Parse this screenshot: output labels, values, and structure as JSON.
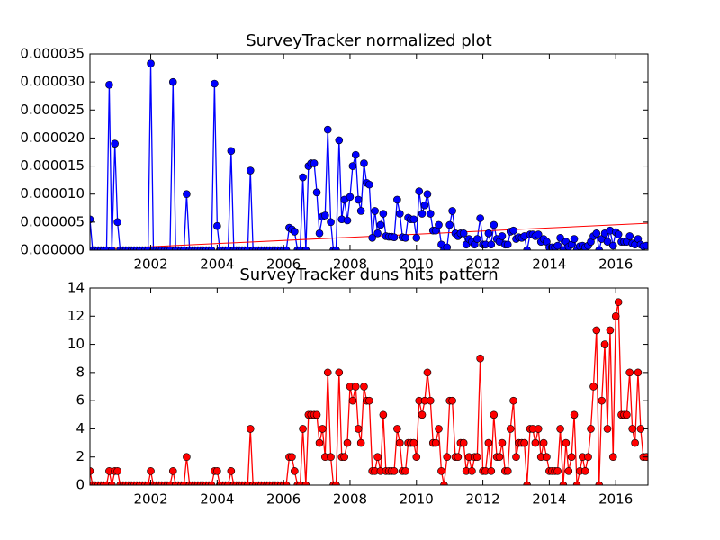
{
  "chart_data": [
    {
      "type": "line",
      "title": "SurveyTracker normalized plot",
      "color": "#0000ff",
      "x": [
        2000.17,
        2000.25,
        2000.33,
        2000.42,
        2000.5,
        2000.58,
        2000.67,
        2000.75,
        2000.83,
        2000.92,
        2001,
        2001.08,
        2001.17,
        2001.25,
        2001.33,
        2001.42,
        2001.5,
        2001.58,
        2001.67,
        2001.75,
        2001.83,
        2001.92,
        2002,
        2002.08,
        2002.17,
        2002.25,
        2002.33,
        2002.42,
        2002.5,
        2002.58,
        2002.67,
        2002.75,
        2002.83,
        2002.92,
        2003,
        2003.08,
        2003.17,
        2003.25,
        2003.33,
        2003.42,
        2003.5,
        2003.58,
        2003.67,
        2003.75,
        2003.83,
        2003.92,
        2004,
        2004.08,
        2004.17,
        2004.25,
        2004.33,
        2004.42,
        2004.5,
        2004.58,
        2004.67,
        2004.75,
        2004.83,
        2004.92,
        2005,
        2005.08,
        2005.17,
        2005.25,
        2005.33,
        2005.42,
        2005.5,
        2005.58,
        2005.67,
        2005.75,
        2005.83,
        2005.92,
        2006,
        2006.08,
        2006.17,
        2006.25,
        2006.33,
        2006.42,
        2006.5,
        2006.58,
        2006.67,
        2006.75,
        2006.83,
        2006.92,
        2007,
        2007.08,
        2007.17,
        2007.25,
        2007.33,
        2007.42,
        2007.5,
        2007.58,
        2007.67,
        2007.75,
        2007.83,
        2007.92,
        2008,
        2008.08,
        2008.17,
        2008.25,
        2008.33,
        2008.42,
        2008.5,
        2008.58,
        2008.67,
        2008.75,
        2008.83,
        2008.92,
        2009,
        2009.08,
        2009.17,
        2009.25,
        2009.33,
        2009.42,
        2009.5,
        2009.58,
        2009.67,
        2009.75,
        2009.83,
        2009.92,
        2010,
        2010.08,
        2010.17,
        2010.25,
        2010.33,
        2010.42,
        2010.5,
        2010.58,
        2010.67,
        2010.75,
        2010.83,
        2010.92,
        2011,
        2011.08,
        2011.17,
        2011.25,
        2011.33,
        2011.42,
        2011.5,
        2011.58,
        2011.67,
        2011.75,
        2011.83,
        2011.92,
        2012,
        2012.08,
        2012.17,
        2012.25,
        2012.33,
        2012.42,
        2012.5,
        2012.58,
        2012.67,
        2012.75,
        2012.83,
        2012.92,
        2013,
        2013.08,
        2013.17,
        2013.25,
        2013.33,
        2013.42,
        2013.5,
        2013.58,
        2013.67,
        2013.75,
        2013.83,
        2013.92,
        2014,
        2014.08,
        2014.17,
        2014.25,
        2014.33,
        2014.42,
        2014.5,
        2014.58,
        2014.67,
        2014.75,
        2014.83,
        2014.92,
        2015,
        2015.08,
        2015.17,
        2015.25,
        2015.33,
        2015.42,
        2015.5,
        2015.58,
        2015.67,
        2015.75,
        2015.83,
        2015.92,
        2016,
        2016.08,
        2016.17,
        2016.25,
        2016.33,
        2016.42,
        2016.5,
        2016.58,
        2016.67,
        2016.75,
        2016.83,
        2016.92
      ],
      "values": [
        5.5e-06,
        0,
        0,
        0,
        0,
        0,
        0,
        2.95e-05,
        0,
        1.9e-05,
        5e-06,
        0,
        0,
        0,
        0,
        0,
        0,
        0,
        0,
        0,
        0,
        0,
        3.33e-05,
        0,
        0,
        0,
        0,
        0,
        0,
        0,
        3e-05,
        0,
        0,
        0,
        0,
        1e-05,
        0,
        0,
        0,
        0,
        0,
        0,
        0,
        0,
        0,
        2.97e-05,
        4.3e-06,
        0,
        0,
        0,
        0,
        1.77e-05,
        0,
        0,
        0,
        0,
        0,
        0,
        1.42e-05,
        0,
        0,
        0,
        0,
        0,
        0,
        0,
        0,
        0,
        0,
        0,
        0,
        0,
        4e-06,
        3.7e-06,
        3.3e-06,
        0,
        0,
        1.3e-05,
        0,
        1.5e-05,
        1.55e-05,
        1.55e-05,
        1.03e-05,
        3e-06,
        6e-06,
        6.2e-06,
        2.15e-05,
        5e-06,
        0,
        0,
        1.96e-05,
        5.5e-06,
        9e-06,
        5.3e-06,
        9.5e-06,
        1.5e-05,
        1.7e-05,
        9e-06,
        7e-06,
        1.55e-05,
        1.2e-05,
        1.17e-05,
        2.2e-06,
        7e-06,
        3e-06,
        4.5e-06,
        6.5e-06,
        2.5e-06,
        2.4e-06,
        2.4e-06,
        2.3e-06,
        9e-06,
        6.5e-06,
        2.3e-06,
        2.2e-06,
        5.8e-06,
        5.5e-06,
        5.5e-06,
        2.2e-06,
        1.05e-05,
        6.5e-06,
        8e-06,
        1e-05,
        6.5e-06,
        3.5e-06,
        3.5e-06,
        4.5e-06,
        1e-06,
        0,
        5e-07,
        4.5e-06,
        7e-06,
        3e-06,
        2.5e-06,
        3e-06,
        3e-06,
        1e-06,
        2e-06,
        1.5e-06,
        1e-06,
        2e-06,
        5.7e-06,
        1e-06,
        1e-06,
        3e-06,
        1e-06,
        4.5e-06,
        2e-06,
        1.5e-06,
        2.5e-06,
        1e-06,
        1e-06,
        3.3e-06,
        3.5e-06,
        2e-06,
        2.3e-06,
        2.2e-06,
        2.5e-06,
        0,
        2.8e-06,
        2.8e-06,
        2.5e-06,
        2.8e-06,
        1.5e-06,
        2e-06,
        1.5e-06,
        5e-07,
        5e-07,
        5e-07,
        8e-07,
        2.2e-06,
        0,
        1.5e-06,
        6e-07,
        1e-06,
        2e-06,
        0,
        7e-07,
        8e-07,
        5e-07,
        8e-07,
        1.5e-06,
        2.5e-06,
        3e-06,
        0,
        2e-06,
        3e-06,
        1.5e-06,
        3.5e-06,
        8e-07,
        3.2e-06,
        2.8e-06,
        1.5e-06,
        1.5e-06,
        1.5e-06,
        2.5e-06,
        1.2e-06,
        1e-06,
        2e-06,
        1e-06,
        7e-07,
        8e-07
      ],
      "trend": {
        "color": "#ff0000",
        "x": [
          2000.17,
          2016.97
        ],
        "values": [
          1e-07,
          4.8e-06
        ]
      },
      "xlim": [
        2000.17,
        2016.97
      ],
      "xticks": [
        2002,
        2004,
        2006,
        2008,
        2010,
        2012,
        2014,
        2016
      ],
      "ylim": [
        0,
        3.5e-05
      ],
      "yticks": [
        {
          "value": 0,
          "label": "0.000000"
        },
        {
          "value": 5e-06,
          "label": "0.000005"
        },
        {
          "value": 1e-05,
          "label": "0.000010"
        },
        {
          "value": 1.5e-05,
          "label": "0.000015"
        },
        {
          "value": 2e-05,
          "label": "0.000020"
        },
        {
          "value": 2.5e-05,
          "label": "0.000025"
        },
        {
          "value": 3e-05,
          "label": "0.000030"
        },
        {
          "value": 3.5e-05,
          "label": "0.000035"
        }
      ]
    },
    {
      "type": "line",
      "title": "SurveyTracker duns hits pattern",
      "color": "#ff0000",
      "x": [
        2000.17,
        2000.25,
        2000.33,
        2000.42,
        2000.5,
        2000.58,
        2000.67,
        2000.75,
        2000.83,
        2000.92,
        2001,
        2001.08,
        2001.17,
        2001.25,
        2001.33,
        2001.42,
        2001.5,
        2001.58,
        2001.67,
        2001.75,
        2001.83,
        2001.92,
        2002,
        2002.08,
        2002.17,
        2002.25,
        2002.33,
        2002.42,
        2002.5,
        2002.58,
        2002.67,
        2002.75,
        2002.83,
        2002.92,
        2003,
        2003.08,
        2003.17,
        2003.25,
        2003.33,
        2003.42,
        2003.5,
        2003.58,
        2003.67,
        2003.75,
        2003.83,
        2003.92,
        2004,
        2004.08,
        2004.17,
        2004.25,
        2004.33,
        2004.42,
        2004.5,
        2004.58,
        2004.67,
        2004.75,
        2004.83,
        2004.92,
        2005,
        2005.08,
        2005.17,
        2005.25,
        2005.33,
        2005.42,
        2005.5,
        2005.58,
        2005.67,
        2005.75,
        2005.83,
        2005.92,
        2006,
        2006.08,
        2006.17,
        2006.25,
        2006.33,
        2006.42,
        2006.5,
        2006.58,
        2006.67,
        2006.75,
        2006.83,
        2006.92,
        2007,
        2007.08,
        2007.17,
        2007.25,
        2007.33,
        2007.42,
        2007.5,
        2007.58,
        2007.67,
        2007.75,
        2007.83,
        2007.92,
        2008,
        2008.08,
        2008.17,
        2008.25,
        2008.33,
        2008.42,
        2008.5,
        2008.58,
        2008.67,
        2008.75,
        2008.83,
        2008.92,
        2009,
        2009.08,
        2009.17,
        2009.25,
        2009.33,
        2009.42,
        2009.5,
        2009.58,
        2009.67,
        2009.75,
        2009.83,
        2009.92,
        2010,
        2010.08,
        2010.17,
        2010.25,
        2010.33,
        2010.42,
        2010.5,
        2010.58,
        2010.67,
        2010.75,
        2010.83,
        2010.92,
        2011,
        2011.08,
        2011.17,
        2011.25,
        2011.33,
        2011.42,
        2011.5,
        2011.58,
        2011.67,
        2011.75,
        2011.83,
        2011.92,
        2012,
        2012.08,
        2012.17,
        2012.25,
        2012.33,
        2012.42,
        2012.5,
        2012.58,
        2012.67,
        2012.75,
        2012.83,
        2012.92,
        2013,
        2013.08,
        2013.17,
        2013.25,
        2013.33,
        2013.42,
        2013.5,
        2013.58,
        2013.67,
        2013.75,
        2013.83,
        2013.92,
        2014,
        2014.08,
        2014.17,
        2014.25,
        2014.33,
        2014.42,
        2014.5,
        2014.58,
        2014.67,
        2014.75,
        2014.83,
        2014.92,
        2015,
        2015.08,
        2015.17,
        2015.25,
        2015.33,
        2015.42,
        2015.5,
        2015.58,
        2015.67,
        2015.75,
        2015.83,
        2015.92,
        2016,
        2016.08,
        2016.17,
        2016.25,
        2016.33,
        2016.42,
        2016.5,
        2016.58,
        2016.67,
        2016.75,
        2016.83,
        2016.92
      ],
      "values": [
        1,
        0,
        0,
        0,
        0,
        0,
        0,
        1,
        0,
        1,
        1,
        0,
        0,
        0,
        0,
        0,
        0,
        0,
        0,
        0,
        0,
        0,
        1,
        0,
        0,
        0,
        0,
        0,
        0,
        0,
        1,
        0,
        0,
        0,
        0,
        2,
        0,
        0,
        0,
        0,
        0,
        0,
        0,
        0,
        0,
        1,
        1,
        0,
        0,
        0,
        0,
        1,
        0,
        0,
        0,
        0,
        0,
        0,
        4,
        0,
        0,
        0,
        0,
        0,
        0,
        0,
        0,
        0,
        0,
        0,
        0,
        0,
        2,
        2,
        1,
        0,
        0,
        4,
        0,
        5,
        5,
        5,
        5,
        3,
        4,
        2,
        8,
        2,
        0,
        0,
        8,
        2,
        2,
        3,
        7,
        6,
        7,
        4,
        3,
        7,
        6,
        6,
        1,
        1,
        2,
        1,
        5,
        1,
        1,
        1,
        1,
        4,
        3,
        1,
        1,
        3,
        3,
        3,
        2,
        6,
        5,
        6,
        8,
        6,
        3,
        3,
        4,
        1,
        0,
        2,
        6,
        6,
        2,
        2,
        3,
        3,
        1,
        2,
        1,
        2,
        2,
        9,
        1,
        1,
        3,
        1,
        5,
        2,
        2,
        3,
        1,
        1,
        4,
        6,
        2,
        3,
        3,
        3,
        0,
        4,
        4,
        3,
        4,
        2,
        3,
        2,
        1,
        1,
        1,
        1,
        4,
        0,
        3,
        1,
        2,
        5,
        0,
        1,
        2,
        1,
        2,
        4,
        7,
        11,
        0,
        6,
        10,
        4,
        11,
        2,
        12,
        13,
        5,
        5,
        5,
        8,
        4,
        3,
        8,
        4,
        2,
        2
      ],
      "xlim": [
        2000.17,
        2016.97
      ],
      "xticks": [
        2002,
        2004,
        2006,
        2008,
        2010,
        2012,
        2014,
        2016
      ],
      "ylim": [
        0,
        14
      ],
      "yticks": [
        0,
        2,
        4,
        6,
        8,
        10,
        12,
        14
      ]
    }
  ]
}
